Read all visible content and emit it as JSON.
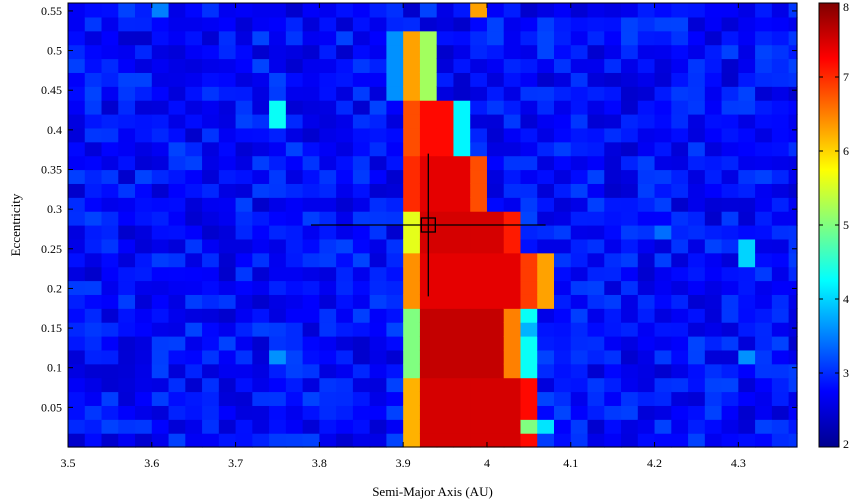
{
  "chart_data": {
    "type": "heatmap",
    "xlabel": "Semi-Major Axis (AU)",
    "ylabel": "Eccentricity",
    "xlim": [
      3.5,
      4.37
    ],
    "ylim": [
      0.0,
      0.56
    ],
    "x_ticks": [
      3.5,
      3.6,
      3.7,
      3.8,
      3.9,
      4.0,
      4.1,
      4.2,
      4.3
    ],
    "x_tick_labels": [
      "3.5",
      "3.6",
      "3.7",
      "3.8",
      "3.9",
      "4",
      "4.1",
      "4.2",
      "4.3"
    ],
    "y_ticks": [
      0.05,
      0.1,
      0.15,
      0.2,
      0.25,
      0.3,
      0.35,
      0.4,
      0.45,
      0.5,
      0.55
    ],
    "y_tick_labels": [
      "0.05",
      "0.1",
      "0.15",
      "0.2",
      "0.25",
      "0.3",
      "0.35",
      "0.4",
      "0.45",
      "0.5",
      "0.55"
    ],
    "colorbar": {
      "min": 2,
      "max": 8,
      "ticks": [
        2,
        3,
        4,
        5,
        6,
        7,
        8
      ],
      "tick_labels": [
        "2",
        "3",
        "4",
        "5",
        "6",
        "7",
        "8"
      ],
      "colormap": "jet"
    },
    "grid": {
      "x_start": 3.5,
      "x_step": 0.02,
      "nx": 44,
      "y_start": 0.0,
      "y_step": 0.0175,
      "ny": 32,
      "background_range": [
        2.45,
        3.15
      ]
    },
    "resonance_band": [
      {
        "e": [
          0.0,
          0.09
        ],
        "cols": [
          [
            3.9,
            3.92,
            6.2
          ],
          [
            3.92,
            4.04,
            7.5
          ],
          [
            4.04,
            4.06,
            7.2
          ]
        ]
      },
      {
        "e": [
          0.09,
          0.18
        ],
        "cols": [
          [
            3.9,
            3.92,
            5.0
          ],
          [
            3.92,
            4.02,
            7.6
          ],
          [
            4.02,
            4.04,
            6.5
          ],
          [
            4.04,
            4.06,
            4.3
          ]
        ]
      },
      {
        "e": [
          0.18,
          0.25
        ],
        "cols": [
          [
            3.9,
            3.92,
            6.4
          ],
          [
            3.92,
            4.04,
            7.4
          ],
          [
            4.04,
            4.06,
            6.9
          ],
          [
            4.06,
            4.08,
            6.3
          ]
        ]
      },
      {
        "e": [
          0.25,
          0.3
        ],
        "cols": [
          [
            3.9,
            3.92,
            5.6
          ],
          [
            3.92,
            4.02,
            7.5
          ],
          [
            4.02,
            4.04,
            7.1
          ]
        ]
      },
      {
        "e": [
          0.3,
          0.37
        ],
        "cols": [
          [
            3.9,
            3.92,
            7.0
          ],
          [
            3.92,
            3.98,
            7.4
          ],
          [
            3.98,
            4.0,
            6.8
          ]
        ]
      },
      {
        "e": [
          0.37,
          0.44
        ],
        "cols": [
          [
            3.9,
            3.92,
            6.8
          ],
          [
            3.92,
            3.96,
            7.2
          ],
          [
            3.96,
            3.98,
            4.2
          ]
        ]
      },
      {
        "e": [
          0.44,
          0.52
        ],
        "cols": [
          [
            3.88,
            3.9,
            3.6
          ],
          [
            3.9,
            3.92,
            6.3
          ],
          [
            3.92,
            3.94,
            5.2
          ]
        ]
      }
    ],
    "highlights": [
      {
        "x": 3.74,
        "e": 0.42,
        "v": 4.3
      },
      {
        "x": 3.98,
        "e": 0.55,
        "v": 6.3
      },
      {
        "x": 4.3,
        "e": 0.245,
        "v": 4.0
      },
      {
        "x": 3.74,
        "e": 0.118,
        "v": 3.6
      },
      {
        "x": 4.3,
        "e": 0.118,
        "v": 3.6
      },
      {
        "x": 4.04,
        "e": 0.018,
        "v": 5.0
      },
      {
        "x": 4.06,
        "e": 0.018,
        "v": 4.1
      },
      {
        "x": 4.04,
        "e": 0.15,
        "v": 3.8
      },
      {
        "x": 3.6,
        "e": 0.55,
        "v": 3.5
      },
      {
        "x": 4.2,
        "e": 0.27,
        "v": 3.4
      }
    ],
    "marker": {
      "x": 3.93,
      "e": 0.28,
      "x_err": [
        3.79,
        4.07
      ],
      "e_err": [
        0.19,
        0.37
      ]
    }
  }
}
